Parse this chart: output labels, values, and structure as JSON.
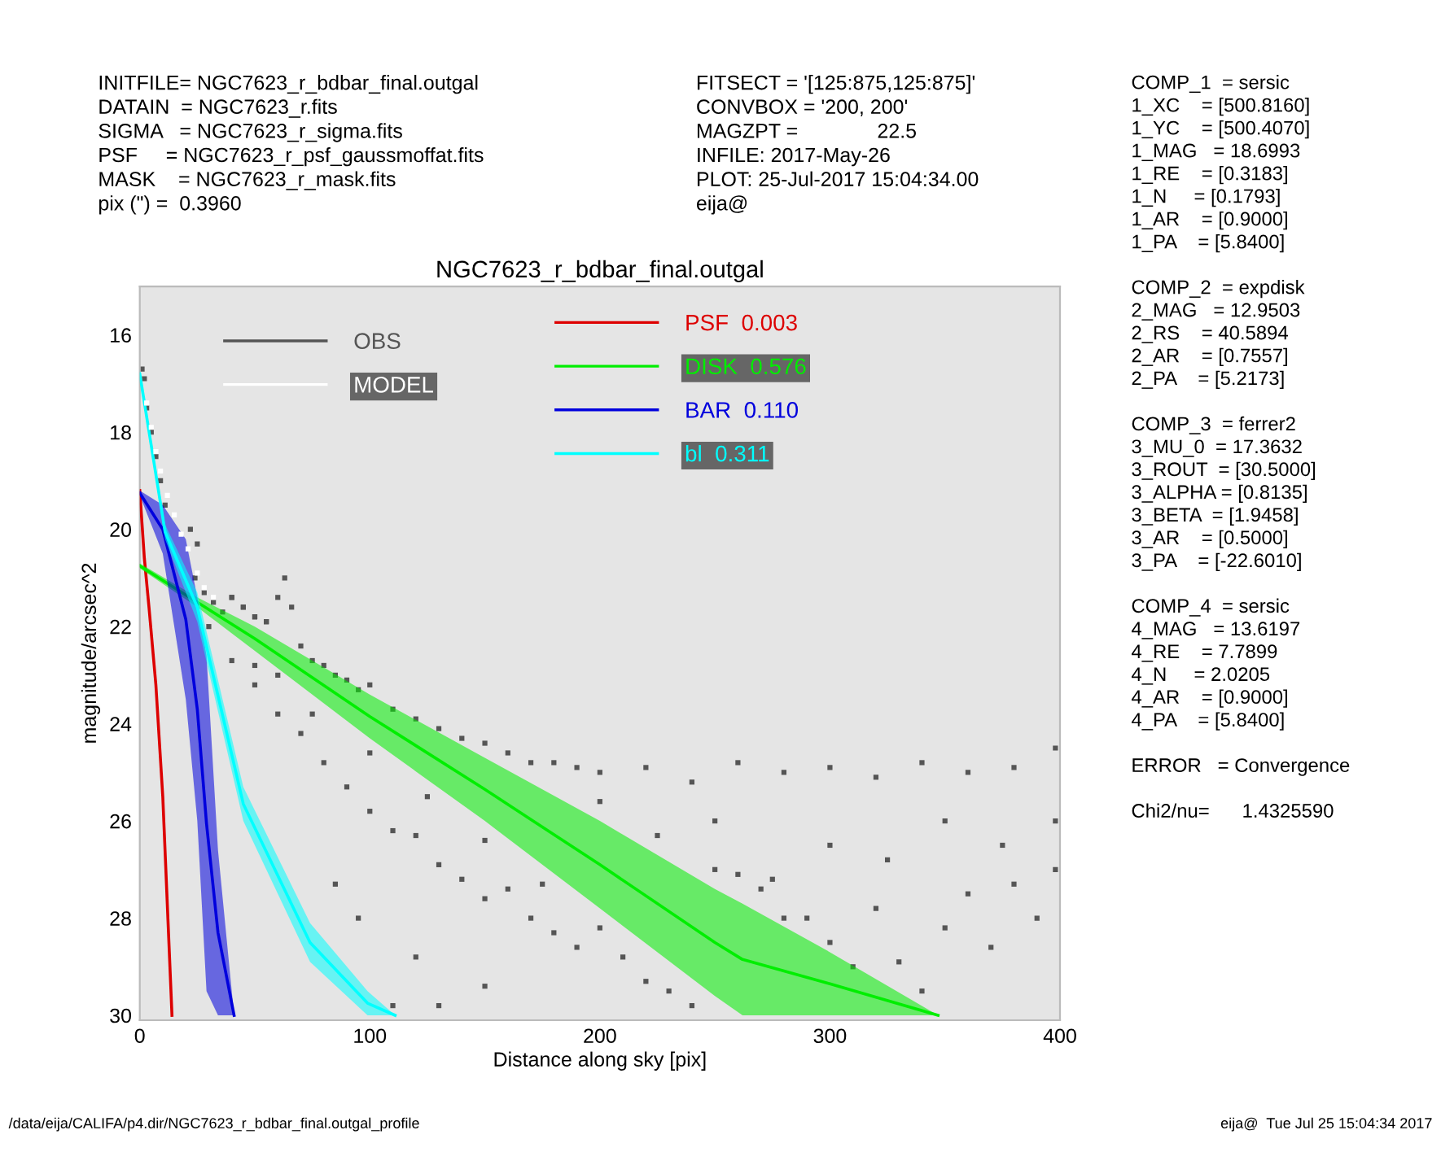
{
  "chart_data": {
    "type": "scatter",
    "title": "NGC7623_r_bdbar_final.outgal",
    "xlabel": "Distance along sky [pix]",
    "ylabel": "magnitude/arcsec^2",
    "xlim": [
      0,
      400
    ],
    "ylim": [
      30.1,
      15
    ],
    "xticks": [
      0,
      100,
      200,
      300,
      400
    ],
    "yticks": [
      16,
      18,
      20,
      22,
      24,
      26,
      28,
      30
    ],
    "grid": false,
    "legend": "top",
    "annotations": [
      "INITFILE= NGC7623_r_bdbar_final.outgal\nDATAIN  = NGC7623_r.fits\nSIGMA   = NGC7623_r_sigma.fits\nPSF     = NGC7623_r_psf_gaussmoffat.fits\nMASK    = NGC7623_r_mask.fits\npix (\") =  0.3960",
      "FITSECT = '[125:875,125:875]'\nCONVBOX = '200, 200'\nMAGZPT =              22.5\nINFILE: 2017-May-26\nPLOT: 25-Jul-2017 15:04:34.00\neija@",
      "COMP_1  = sersic\n1_XC    = [500.8160]\n1_YC    = [500.4070]\n1_MAG   = 18.6993\n1_RE    = [0.3183]\n1_N     = [0.1793]\n1_AR    = [0.9000]\n1_PA    = [5.8400]\n\nCOMP_2  = expdisk\n2_MAG   = 12.9503\n2_RS    = 40.5894\n2_AR    = [0.7557]\n2_PA    = [5.2173]\n\nCOMP_3  = ferrer2\n3_MU_0  = 17.3632\n3_ROUT  = [30.5000]\n3_ALPHA = [0.8135]\n3_BETA  = [1.9458]\n3_AR    = [0.5000]\n3_PA    = [-22.6010]\n\nCOMP_4  = sersic\n4_MAG   = 13.6197\n4_RE    = 7.7899\n4_N     = 2.0205\n4_AR    = [0.9000]\n4_PA    = [5.8400]\n\nERROR   = Convergence\n\nChi2/nu=      1.4325590",
      "/data/eija/CALIFA/p4.dir/NGC7623_r_bdbar_final.outgal_profile",
      "eija@  Tue Jul 25 15:04:34 2017"
    ],
    "series": [
      {
        "name": "OBS",
        "marker": "square",
        "color": "#555555",
        "x": [
          1,
          2,
          3,
          5,
          7,
          9,
          11,
          22,
          25,
          40,
          45,
          50,
          55,
          24,
          28,
          32,
          36,
          40,
          45,
          50,
          55,
          60,
          63,
          66,
          70,
          75,
          80,
          85,
          90,
          95,
          100,
          110,
          120,
          130,
          140,
          150,
          160,
          170,
          180,
          190,
          200,
          220,
          240,
          260,
          280,
          300,
          320,
          340,
          360,
          380,
          398,
          30,
          40,
          50,
          60,
          70,
          80,
          90,
          100,
          110,
          120,
          130,
          140,
          150,
          160,
          170,
          180,
          190,
          200,
          210,
          220,
          230,
          240,
          250,
          260,
          270,
          280,
          290,
          300,
          310,
          320,
          330,
          340,
          350,
          360,
          370,
          380,
          390,
          398,
          150,
          200,
          250,
          300,
          350,
          398,
          175,
          225,
          275,
          325,
          375,
          125,
          100,
          75,
          60,
          50,
          120,
          130,
          150,
          110,
          85,
          95
        ],
        "values": [
          16.7,
          16.9,
          17.5,
          18.0,
          18.5,
          19.0,
          19.5,
          20.0,
          20.3,
          21.4,
          21.6,
          21.8,
          21.9,
          21.0,
          21.3,
          21.5,
          21.7,
          21.4,
          21.6,
          21.8,
          21.9,
          21.4,
          21.0,
          21.6,
          22.4,
          22.7,
          22.8,
          23.0,
          23.1,
          23.3,
          23.2,
          23.7,
          23.9,
          24.1,
          24.3,
          24.4,
          24.6,
          24.8,
          24.8,
          24.9,
          25.0,
          24.9,
          25.2,
          24.8,
          25.0,
          24.9,
          25.1,
          24.8,
          25.0,
          24.9,
          24.5,
          22.0,
          22.7,
          23.2,
          23.8,
          24.2,
          24.8,
          25.3,
          25.8,
          26.2,
          26.3,
          26.9,
          27.2,
          27.6,
          27.4,
          28.0,
          28.3,
          28.6,
          28.2,
          28.8,
          29.3,
          29.5,
          29.8,
          27.0,
          27.1,
          27.4,
          28.0,
          28.0,
          28.5,
          29.0,
          27.8,
          28.9,
          29.5,
          28.2,
          27.5,
          28.6,
          27.3,
          28.0,
          27.0,
          26.4,
          25.6,
          26.0,
          26.5,
          26.0,
          26.0,
          27.3,
          26.3,
          27.2,
          26.8,
          26.5,
          25.5,
          24.6,
          23.8,
          23.0,
          22.8,
          28.8,
          29.8,
          29.4,
          29.8,
          27.3,
          28.0
        ]
      },
      {
        "name": "MODEL",
        "marker": "square",
        "color": "#ffffff",
        "x": [
          3,
          5,
          7,
          9,
          12,
          15,
          18,
          21,
          25,
          28,
          32
        ],
        "values": [
          17.4,
          17.9,
          18.4,
          18.8,
          19.3,
          19.7,
          20.1,
          20.4,
          20.9,
          21.2,
          21.4
        ]
      },
      {
        "name": "PSF  0.003",
        "type": "line",
        "color": "#dd0000",
        "x": [
          0,
          2,
          4,
          7,
          10,
          14
        ],
        "values": [
          19.2,
          20.6,
          21.6,
          23.2,
          25.5,
          30.0
        ]
      },
      {
        "name": "DISK  0.576",
        "type": "line",
        "color": "#00ee00",
        "x": [
          0,
          25,
          50,
          100,
          150,
          200,
          250,
          262,
          300,
          347
        ],
        "values": [
          20.75,
          21.5,
          22.25,
          23.85,
          25.35,
          26.9,
          28.5,
          28.85,
          29.35,
          30.0
        ],
        "lower": [
          20.7,
          21.4,
          22.0,
          23.4,
          24.7,
          26.0,
          27.4,
          27.7,
          28.7,
          30.0
        ],
        "upper": [
          20.8,
          21.6,
          22.5,
          24.3,
          26.0,
          27.8,
          29.6,
          30.0,
          30.0,
          30.0
        ]
      },
      {
        "name": "BAR  0.110",
        "type": "line",
        "color": "#0000dd",
        "x": [
          0,
          10,
          20,
          25,
          29,
          34,
          41
        ],
        "values": [
          19.25,
          20.0,
          21.85,
          23.7,
          26.05,
          28.3,
          30.0
        ],
        "lower": [
          19.2,
          19.5,
          20.2,
          21.4,
          22.6,
          26.6,
          30.0
        ],
        "upper": [
          19.3,
          20.5,
          23.5,
          26.0,
          29.5,
          30.0,
          30.0
        ]
      },
      {
        "name": "bl  0.311",
        "type": "line",
        "color": "#00ffff",
        "x": [
          0,
          11,
          25,
          45,
          74,
          99,
          111
        ],
        "values": [
          16.8,
          20.05,
          21.6,
          25.65,
          28.5,
          29.75,
          30.0
        ],
        "lower": [
          16.7,
          19.9,
          21.3,
          25.3,
          28.1,
          29.5,
          30.0
        ],
        "upper": [
          16.9,
          20.2,
          21.9,
          26.0,
          28.9,
          30.0,
          30.0
        ]
      }
    ]
  }
}
